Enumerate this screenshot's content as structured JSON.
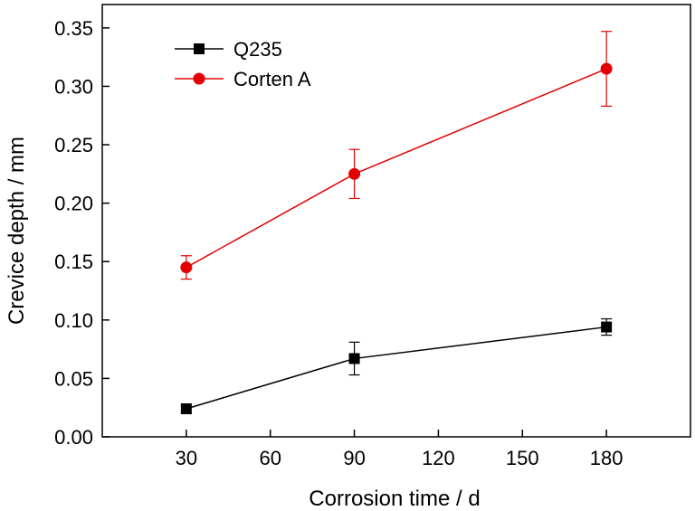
{
  "chart_data": {
    "type": "line",
    "title": "",
    "xlabel": "Corrosion time / d",
    "ylabel": "Crevice depth / mm",
    "xlim": [
      0,
      210
    ],
    "ylim": [
      0,
      0.37
    ],
    "xticks": [
      30,
      60,
      90,
      120,
      150,
      180
    ],
    "xtick_labels": [
      "30",
      "60",
      "90",
      "120",
      "150",
      "180"
    ],
    "yticks": [
      0,
      0.05,
      0.1,
      0.15,
      0.2,
      0.25,
      0.3,
      0.35
    ],
    "ytick_labels": [
      "0.00",
      "0.05",
      "0.10",
      "0.15",
      "0.20",
      "0.25",
      "0.30",
      "0.35"
    ],
    "grid": false,
    "legend_position": "top-left",
    "series": [
      {
        "name": "Q235",
        "color": "#000000",
        "marker": "square",
        "x": [
          30,
          90,
          180
        ],
        "y": [
          0.024,
          0.067,
          0.094
        ],
        "error": [
          0.004,
          0.014,
          0.007
        ]
      },
      {
        "name": "Corten A",
        "color": "#e30000",
        "marker": "circle",
        "x": [
          30,
          90,
          180
        ],
        "y": [
          0.145,
          0.225,
          0.315
        ],
        "error": [
          0.01,
          0.021,
          0.032
        ]
      }
    ]
  }
}
